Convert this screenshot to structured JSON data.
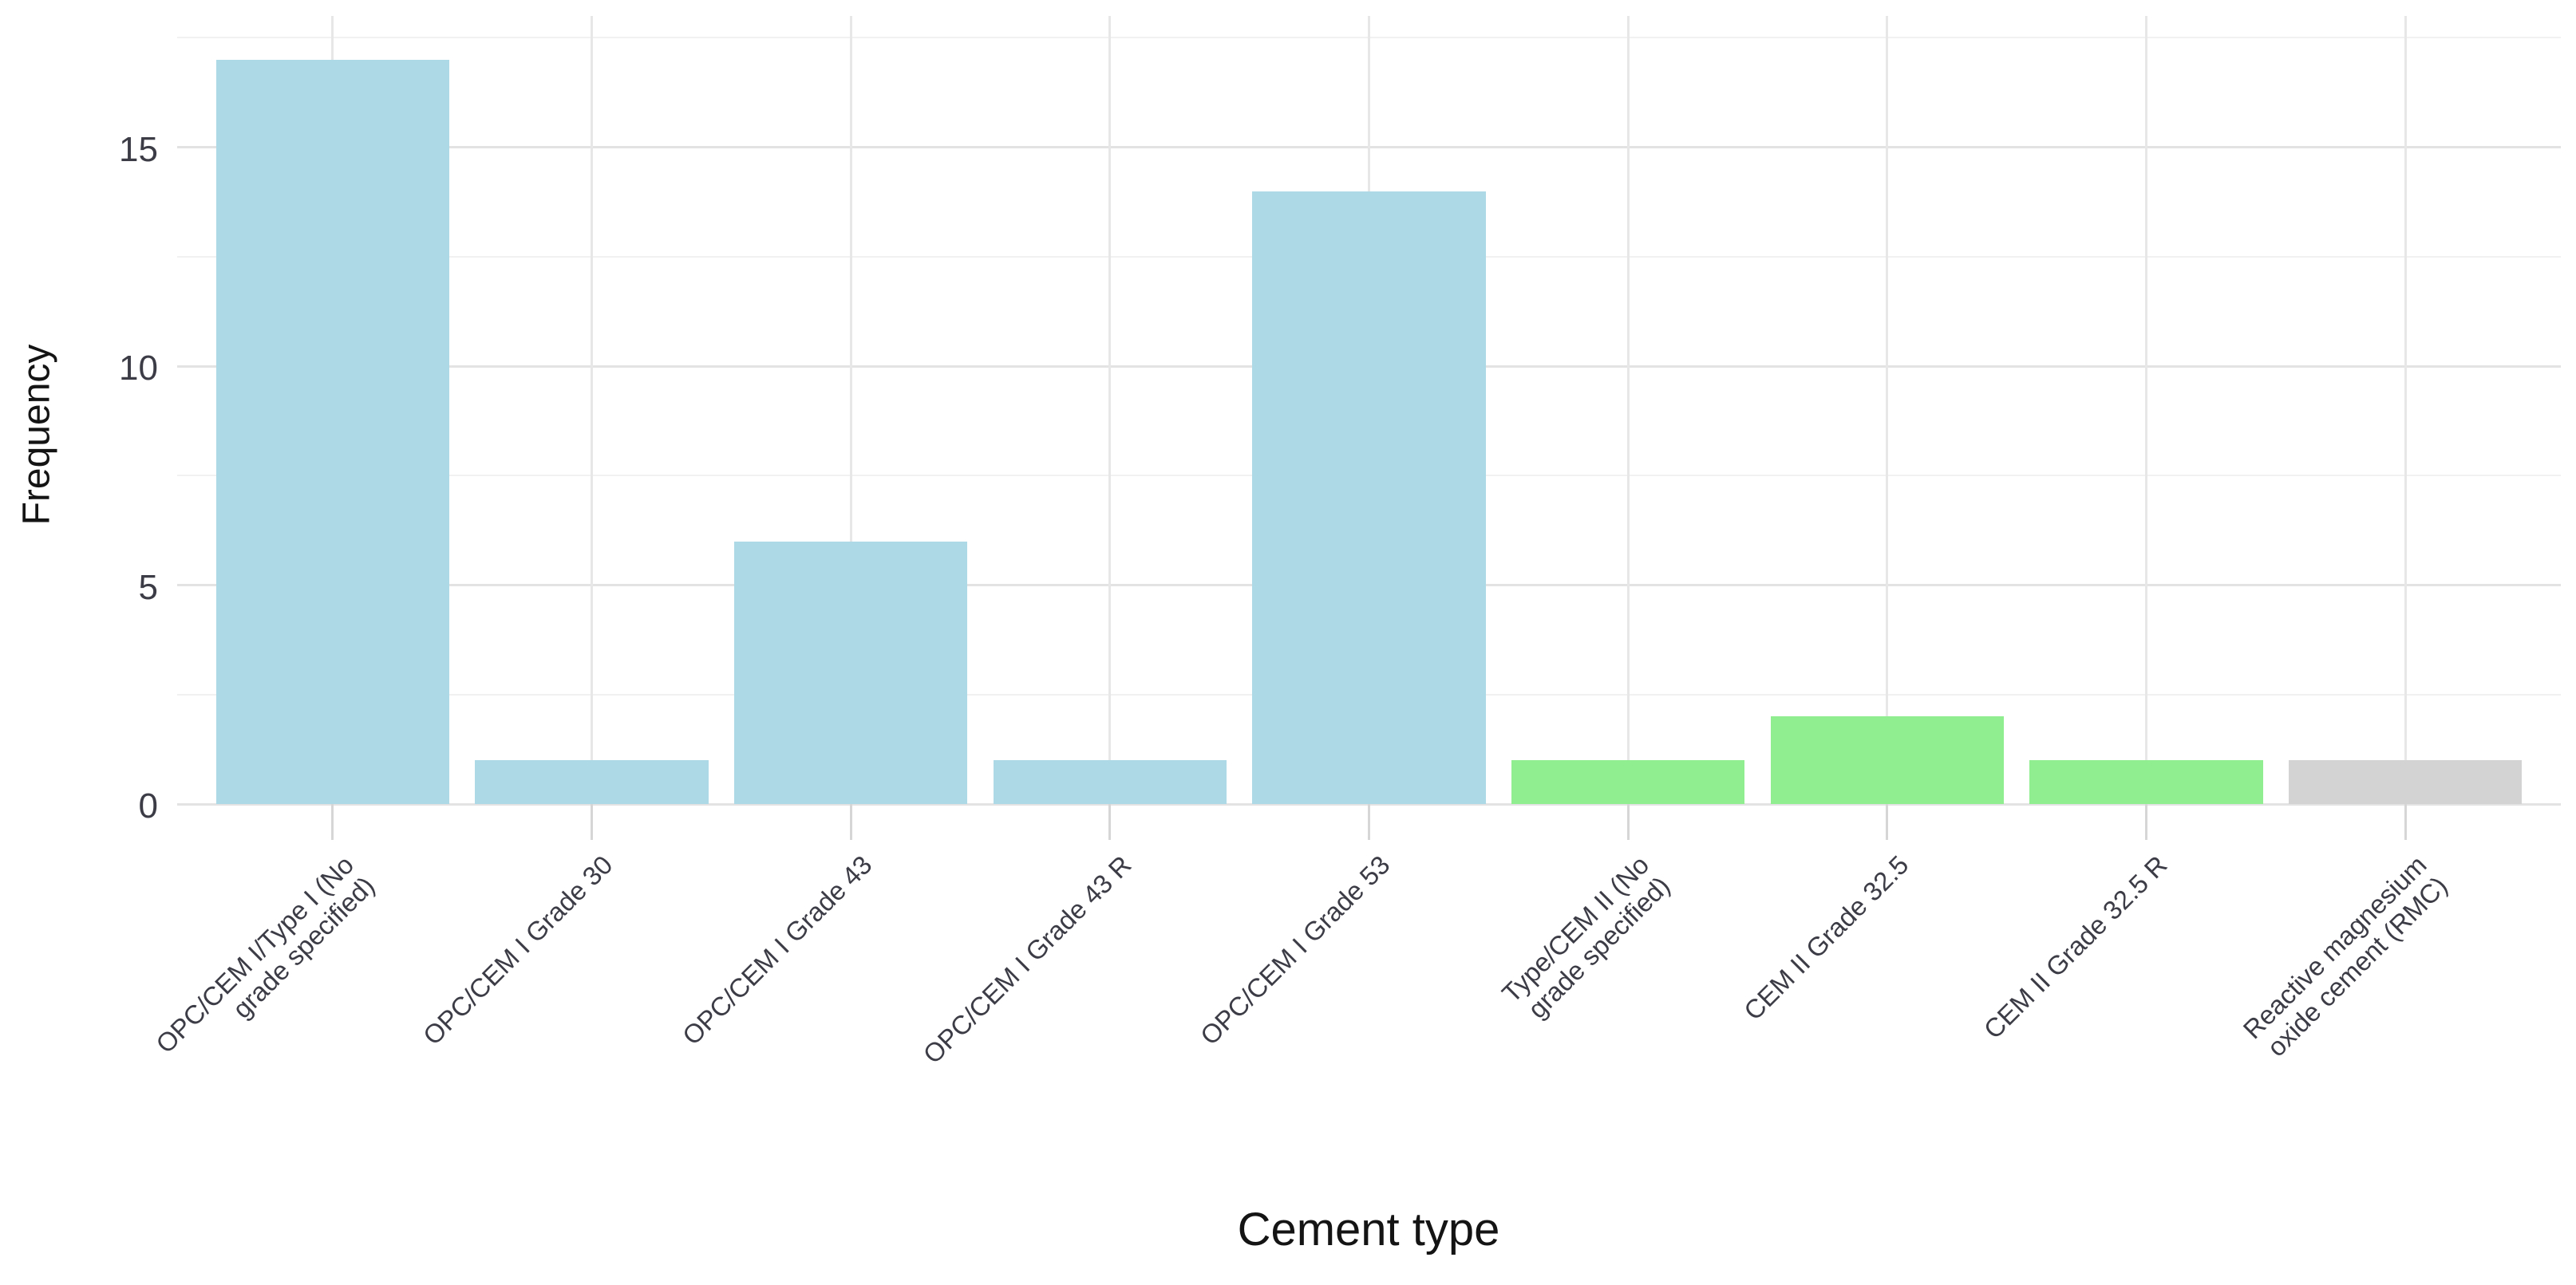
{
  "chart_data": {
    "type": "bar",
    "title": "",
    "xlabel": "Cement type",
    "ylabel": "Frequency",
    "categories": [
      "OPC/CEM I/Type I (No grade specified)",
      "OPC/CEM I Grade 30",
      "OPC/CEM I Grade 43",
      "OPC/CEM I Grade 43 R",
      "OPC/CEM I Grade 53",
      "Type/CEM II (No grade specified)",
      "CEM II Grade 32.5",
      "CEM II Grade 32.5 R",
      "Reactive magnesium oxide cement (RMC)"
    ],
    "category_label_lines": [
      [
        "OPC/CEM I/Type I (No",
        "grade specified)"
      ],
      [
        "OPC/CEM I Grade 30"
      ],
      [
        "OPC/CEM I Grade 43"
      ],
      [
        "OPC/CEM I Grade 43 R"
      ],
      [
        "OPC/CEM I Grade 53"
      ],
      [
        "Type/CEM II (No",
        "grade specified)"
      ],
      [
        "CEM II Grade 32.5"
      ],
      [
        "CEM II Grade 32.5 R"
      ],
      [
        "Reactive magnesium",
        "oxide cement (RMC)"
      ]
    ],
    "values": [
      17,
      1,
      6,
      1,
      14,
      1,
      2,
      1,
      1
    ],
    "bar_colors": [
      "#ADD8E6",
      "#ADD8E6",
      "#ADD8E6",
      "#ADD8E6",
      "#ADD8E6",
      "#90EE90",
      "#90EE90",
      "#90EE90",
      "#D3D3D3"
    ],
    "ylim": [
      0,
      18
    ],
    "yticks": [
      0,
      5,
      10,
      15
    ],
    "ytick_labels": [
      "0",
      "5",
      "10",
      "15"
    ],
    "minor_gridlines": [
      2.5,
      7.5,
      12.5,
      17.5
    ],
    "grid": "on",
    "legend_position": "none",
    "x_tick_label_angle_deg": 45,
    "style": {
      "background": "#ffffff",
      "major_gridline_color": "#e3e3e3",
      "minor_gridline_color": "#f1f1f1",
      "vertical_gridline_color": "#e7e7e7",
      "axis_tick_color": "#d6d6d6",
      "tick_label_color": "#3c3c46",
      "axis_title_color": "#141414"
    }
  }
}
